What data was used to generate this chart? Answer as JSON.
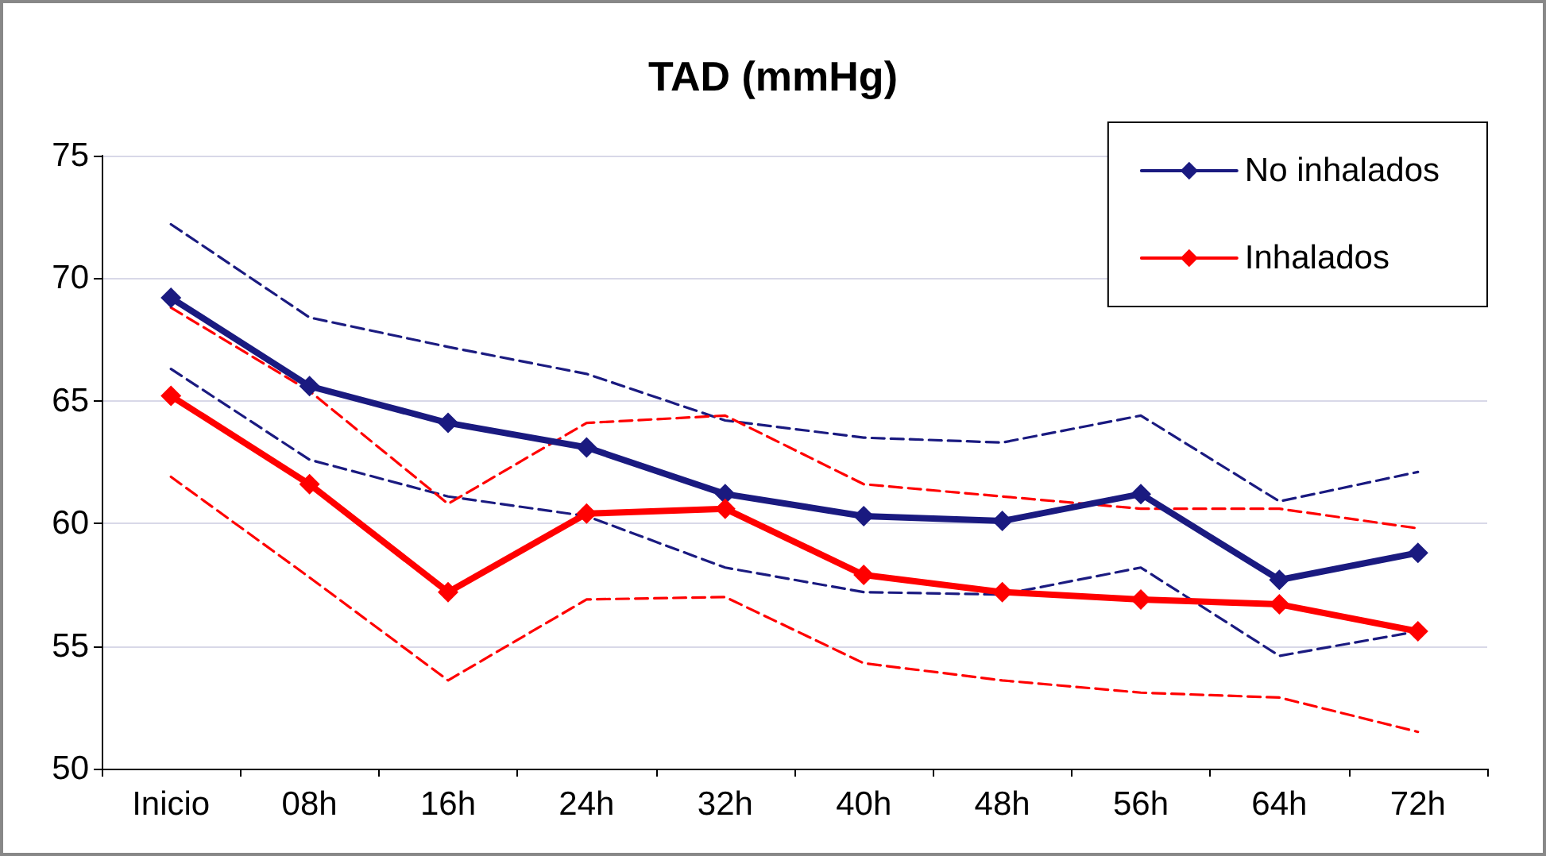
{
  "chart_data": {
    "type": "line",
    "title": "TAD (mmHg)",
    "categories": [
      "Inicio",
      "08h",
      "16h",
      "24h",
      "32h",
      "40h",
      "48h",
      "56h",
      "64h",
      "72h"
    ],
    "series": [
      {
        "name": "No inhalados",
        "color": "#1a1a80",
        "values": [
          69.2,
          65.6,
          64.1,
          63.1,
          61.2,
          60.3,
          60.1,
          61.2,
          57.7,
          58.8
        ]
      },
      {
        "name": "Inhalados",
        "color": "#ff0000",
        "values": [
          65.2,
          61.6,
          57.2,
          60.4,
          60.6,
          57.9,
          57.2,
          56.9,
          56.7,
          55.6
        ]
      },
      {
        "color": "#1a1a80",
        "line_style": "dashed",
        "marker": "none",
        "values": [
          72.2,
          68.4,
          67.2,
          66.1,
          64.2,
          63.5,
          63.3,
          64.4,
          60.9,
          62.1
        ]
      },
      {
        "color": "#1a1a80",
        "line_style": "dashed",
        "marker": "none",
        "values": [
          66.3,
          62.6,
          61.1,
          60.3,
          58.2,
          57.2,
          57.1,
          58.2,
          54.6,
          55.6
        ]
      },
      {
        "color": "#ff0000",
        "line_style": "dashed",
        "marker": "none",
        "values": [
          68.8,
          65.4,
          60.8,
          64.1,
          64.4,
          61.6,
          61.1,
          60.6,
          60.6,
          59.8
        ]
      },
      {
        "color": "#ff0000",
        "line_style": "dashed",
        "marker": "none",
        "values": [
          61.9,
          57.8,
          53.6,
          56.9,
          57.0,
          54.3,
          53.6,
          53.1,
          52.9,
          51.5
        ]
      }
    ],
    "ylim": [
      50,
      75
    ],
    "yticks": [
      50,
      55,
      60,
      65,
      70,
      75
    ],
    "grid": "y",
    "legend": "top right",
    "marker": "diamond",
    "line_style": "solid"
  }
}
